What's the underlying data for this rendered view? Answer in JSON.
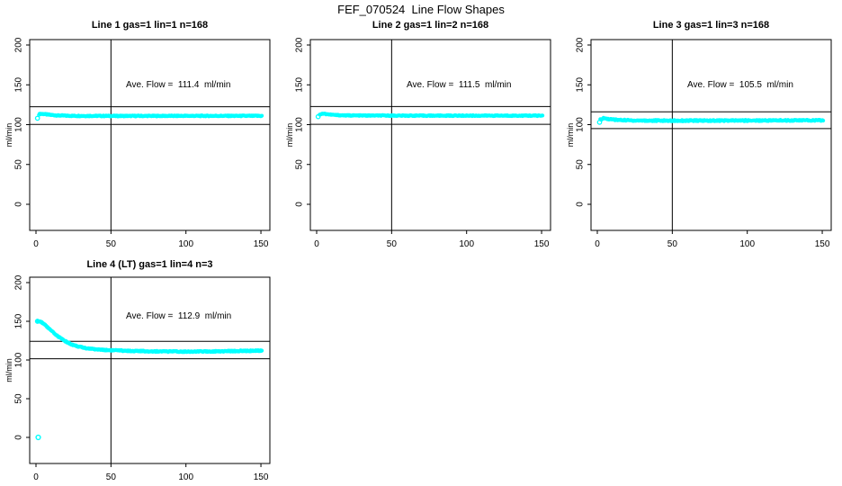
{
  "main_title": "FEF_070524  Line Flow Shapes",
  "colors": {
    "series": "#00FFFF",
    "axis": "#000000",
    "text": "#000000",
    "background": "#FFFFFF"
  },
  "chart_data": [
    {
      "type": "scatter",
      "title": "Line 1 gas=1 lin=1 n=168",
      "ylabel": "ml/min",
      "xlim": [
        0,
        150
      ],
      "ylim": [
        0,
        200
      ],
      "xticks": [
        0,
        50,
        100,
        150
      ],
      "yticks": [
        0,
        50,
        100,
        150,
        200
      ],
      "grid": false,
      "vline_x": 50,
      "hlines": [
        122.5,
        100.3
      ],
      "ave_flow": 111.4,
      "annotation": "Ave. Flow =  111.4  ml/min",
      "start_point": [
        1,
        108
      ],
      "outlier_points": [],
      "x_range": [
        2,
        150.6
      ],
      "n_points": 350,
      "band_jitter": 0.6,
      "series_keypoints": [
        [
          2,
          112.8
        ],
        [
          3,
          113.6
        ],
        [
          5,
          113.4
        ],
        [
          7,
          112.8
        ],
        [
          10,
          112.2
        ],
        [
          14,
          111.6
        ],
        [
          20,
          111.2
        ],
        [
          30,
          111.0
        ],
        [
          60,
          110.9
        ],
        [
          100,
          111.0
        ],
        [
          150,
          111.0
        ]
      ]
    },
    {
      "type": "scatter",
      "title": "Line 2 gas=1 lin=2 n=168",
      "ylabel": "ml/min",
      "xlim": [
        0,
        150
      ],
      "ylim": [
        0,
        200
      ],
      "xticks": [
        0,
        50,
        100,
        150
      ],
      "yticks": [
        0,
        50,
        100,
        150,
        200
      ],
      "grid": false,
      "vline_x": 50,
      "hlines": [
        122.7,
        100.4
      ],
      "ave_flow": 111.5,
      "annotation": "Ave. Flow =  111.5  ml/min",
      "start_point": [
        1,
        110
      ],
      "outlier_points": [],
      "x_range": [
        2,
        150.6
      ],
      "n_points": 350,
      "band_jitter": 0.55,
      "series_keypoints": [
        [
          2,
          112.8
        ],
        [
          4,
          113.8
        ],
        [
          6,
          113.4
        ],
        [
          9,
          112.6
        ],
        [
          13,
          112.0
        ],
        [
          20,
          111.6
        ],
        [
          35,
          111.4
        ],
        [
          70,
          111.3
        ],
        [
          150,
          111.3
        ]
      ]
    },
    {
      "type": "scatter",
      "title": "Line 3 gas=1 lin=3 n=168",
      "ylabel": "ml/min",
      "xlim": [
        0,
        150
      ],
      "ylim": [
        0,
        200
      ],
      "xticks": [
        0,
        50,
        100,
        150
      ],
      "yticks": [
        0,
        50,
        100,
        150,
        200
      ],
      "grid": false,
      "vline_x": 50,
      "hlines": [
        116.1,
        95.0
      ],
      "ave_flow": 105.5,
      "annotation": "Ave. Flow =  105.5  ml/min",
      "start_point": [
        1.5,
        103
      ],
      "outlier_points": [],
      "x_range": [
        2,
        150.6
      ],
      "n_points": 350,
      "band_jitter": 0.8,
      "series_keypoints": [
        [
          2,
          106.5
        ],
        [
          4,
          108.0
        ],
        [
          7,
          107.2
        ],
        [
          10,
          106.5
        ],
        [
          15,
          105.8
        ],
        [
          25,
          105.2
        ],
        [
          50,
          105.0
        ],
        [
          90,
          105.1
        ],
        [
          130,
          105.4
        ],
        [
          150,
          105.4
        ]
      ]
    },
    {
      "type": "scatter",
      "title": "Line 4 (LT) gas=1 lin=4 n=3",
      "ylabel": "ml/min",
      "xlim": [
        0,
        150
      ],
      "ylim": [
        0,
        200
      ],
      "xticks": [
        0,
        50,
        100,
        150
      ],
      "yticks": [
        0,
        50,
        100,
        150,
        200
      ],
      "grid": false,
      "vline_x": 50,
      "hlines": [
        124.2,
        101.6
      ],
      "ave_flow": 112.9,
      "annotation": "Ave. Flow =  112.9  ml/min",
      "start_point": [
        1,
        150
      ],
      "outlier_points": [
        [
          1.5,
          0
        ]
      ],
      "x_range": [
        1,
        150.6
      ],
      "n_points": 420,
      "band_jitter": 0.7,
      "series_keypoints": [
        [
          1,
          150.2
        ],
        [
          3,
          149.6
        ],
        [
          5,
          147.0
        ],
        [
          8,
          141.8
        ],
        [
          10,
          138.2
        ],
        [
          12,
          134.6
        ],
        [
          14,
          131.6
        ],
        [
          16,
          128.8
        ],
        [
          18,
          126.2
        ],
        [
          20,
          123.8
        ],
        [
          23,
          120.8
        ],
        [
          26,
          118.6
        ],
        [
          29,
          117.0
        ],
        [
          33,
          115.4
        ],
        [
          38,
          114.2
        ],
        [
          44,
          113.2
        ],
        [
          50,
          112.6
        ],
        [
          58,
          112.0
        ],
        [
          66,
          111.6
        ],
        [
          76,
          111.2
        ],
        [
          88,
          111.0
        ],
        [
          100,
          110.9
        ],
        [
          112,
          111.0
        ],
        [
          124,
          111.3
        ],
        [
          136,
          111.7
        ],
        [
          150,
          112.0
        ]
      ]
    }
  ]
}
